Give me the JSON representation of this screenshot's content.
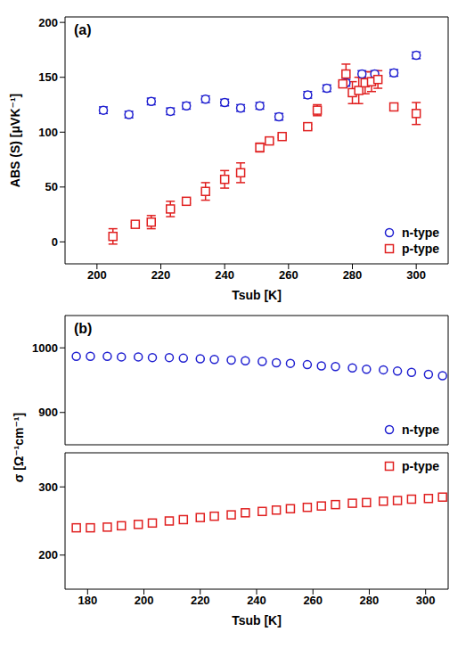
{
  "chart_data": [
    {
      "type": "scatter",
      "annotation": "(a)",
      "xlabel": "Tsub [K]",
      "ylabel": "ABS (S) [μVK⁻¹]",
      "xlim": [
        190,
        310
      ],
      "xticks": [
        200,
        220,
        240,
        260,
        280,
        300
      ],
      "ylim": [
        -20,
        205
      ],
      "yticks": [
        0,
        50,
        100,
        150,
        200
      ],
      "legend": "lower right",
      "series": [
        {
          "name": "n-type",
          "color": "#1f1fd0",
          "marker": "circle",
          "x": [
            202,
            210,
            217,
            223,
            228,
            234,
            240,
            245,
            251,
            257,
            266,
            272,
            278,
            283,
            287,
            293,
            300
          ],
          "values": [
            120,
            116,
            128,
            119,
            124,
            130,
            127,
            122,
            124,
            114,
            134,
            140,
            145,
            153,
            153,
            154,
            170
          ],
          "errors": [
            3,
            3,
            3,
            3,
            3,
            3,
            3,
            3,
            3,
            3,
            3,
            3,
            3,
            3,
            3,
            3,
            3
          ]
        },
        {
          "name": "p-type",
          "color": "#e02020",
          "marker": "square",
          "x": [
            205,
            212,
            217,
            223,
            228,
            234,
            240,
            245,
            251,
            254,
            258,
            266,
            269,
            277,
            278,
            280,
            282,
            284,
            286,
            288,
            293,
            300
          ],
          "values": [
            5,
            16,
            18,
            30,
            37,
            46,
            57,
            63,
            86,
            92,
            96,
            105,
            120,
            144,
            153,
            136,
            138,
            145,
            146,
            148,
            123,
            117
          ],
          "errors": [
            7,
            2,
            6,
            7,
            2,
            8,
            8,
            9,
            4,
            2,
            1,
            2,
            5,
            2,
            9,
            10,
            12,
            10,
            9,
            8,
            2,
            10
          ]
        }
      ]
    },
    {
      "type": "scatter",
      "annotation": "(b)",
      "ylabel": "σ [Ω⁻¹cm⁻¹]",
      "xlim": [
        172,
        308
      ],
      "ylim": [
        850,
        1050
      ],
      "yticks": [
        900,
        1000
      ],
      "tick_labels": "y",
      "legend": "lower right",
      "series": [
        {
          "name": "n-type",
          "color": "#1f1fd0",
          "marker": "circle",
          "x": [
            176,
            181,
            187,
            192,
            198,
            203,
            209,
            214,
            220,
            225,
            231,
            236,
            242,
            247,
            252,
            258,
            263,
            268,
            274,
            279,
            285,
            290,
            295,
            301,
            306
          ],
          "values": [
            987,
            987,
            987,
            986,
            986,
            985,
            985,
            984,
            983,
            982,
            981,
            980,
            979,
            977,
            976,
            974,
            972,
            971,
            969,
            967,
            966,
            964,
            962,
            959,
            957
          ]
        }
      ]
    },
    {
      "type": "scatter",
      "xlabel": "Tsub [K]",
      "xlim": [
        172,
        308
      ],
      "xticks": [
        180,
        200,
        220,
        240,
        260,
        280,
        300
      ],
      "ylim": [
        150,
        350
      ],
      "yticks": [
        200,
        300
      ],
      "legend": "upper right",
      "series": [
        {
          "name": "p-type",
          "color": "#e02020",
          "marker": "square",
          "x": [
            176,
            181,
            187,
            192,
            198,
            203,
            209,
            214,
            220,
            225,
            231,
            236,
            242,
            247,
            252,
            258,
            263,
            268,
            274,
            279,
            285,
            290,
            295,
            301,
            306
          ],
          "values": [
            240,
            240,
            241,
            243,
            245,
            247,
            250,
            252,
            255,
            257,
            259,
            262,
            264,
            266,
            268,
            270,
            272,
            274,
            276,
            277,
            279,
            280,
            282,
            283,
            285
          ]
        }
      ]
    }
  ]
}
